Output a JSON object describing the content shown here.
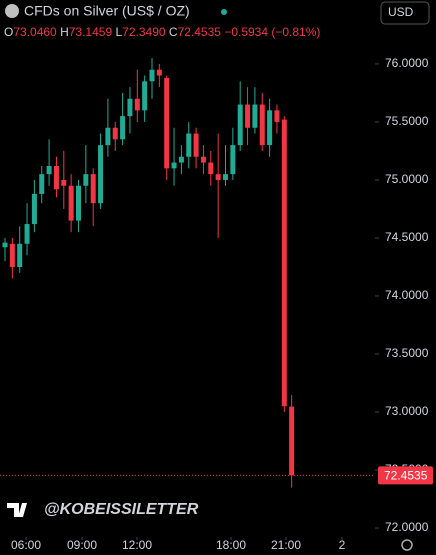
{
  "chart_data": {
    "type": "candlestick",
    "title": "CFDs on Silver (US$ / OZ)",
    "currency": "USD",
    "ohlc_legend": {
      "o_label": "O",
      "o": "73.0460",
      "h_label": "H",
      "h": "73.1459",
      "l_label": "L",
      "l": "72.3490",
      "c_label": "C",
      "c": "72.4535",
      "change": "−0.5934 (−0.81%)"
    },
    "watermark": "@KOBEISSILETTER",
    "categories": [
      null,
      null,
      null,
      null,
      null,
      null,
      null,
      null,
      null,
      null,
      null,
      null,
      null,
      null,
      null,
      null,
      null,
      null,
      null,
      null,
      null,
      null,
      null,
      null,
      null,
      null,
      null,
      null,
      null,
      null,
      null,
      null,
      null,
      null,
      null,
      null,
      null,
      null,
      null,
      null
    ],
    "open": [
      74.42,
      74.45,
      74.25,
      74.45,
      74.62,
      74.88,
      75.05,
      75.12,
      75.0,
      74.95,
      74.65,
      74.95,
      75.05,
      74.8,
      75.3,
      75.45,
      75.35,
      75.55,
      75.7,
      75.6,
      75.85,
      75.95,
      75.88,
      75.1,
      75.15,
      75.2,
      75.4,
      75.2,
      75.15,
      75.05,
      75.0,
      75.05,
      75.3,
      75.65,
      75.45,
      75.65,
      75.3,
      75.6,
      75.52,
      73.046
    ],
    "high": [
      74.5,
      74.5,
      74.6,
      74.8,
      75.0,
      75.12,
      75.35,
      75.2,
      75.25,
      75.05,
      75.0,
      75.3,
      75.1,
      75.4,
      75.7,
      75.5,
      75.75,
      75.8,
      75.95,
      75.9,
      76.05,
      76.0,
      75.9,
      75.45,
      75.3,
      75.5,
      75.45,
      75.3,
      75.25,
      75.4,
      75.3,
      75.45,
      75.85,
      75.8,
      75.8,
      75.75,
      75.7,
      75.65,
      75.55,
      73.1459
    ],
    "low": [
      74.3,
      74.15,
      74.2,
      74.35,
      74.55,
      74.8,
      74.95,
      74.85,
      74.75,
      74.55,
      74.55,
      74.8,
      74.6,
      74.75,
      75.2,
      75.25,
      75.3,
      75.4,
      75.5,
      75.5,
      75.7,
      75.8,
      75.0,
      74.95,
      75.05,
      75.1,
      75.1,
      75.05,
      74.95,
      74.5,
      74.95,
      75.0,
      75.25,
      75.3,
      75.4,
      75.25,
      75.2,
      75.4,
      73.0,
      72.349
    ],
    "close": [
      74.46,
      74.25,
      74.45,
      74.62,
      74.88,
      75.05,
      75.12,
      74.92,
      74.95,
      74.65,
      74.95,
      75.05,
      74.8,
      75.3,
      75.45,
      75.35,
      75.55,
      75.7,
      75.6,
      75.85,
      75.95,
      75.9,
      75.1,
      75.15,
      75.2,
      75.4,
      75.2,
      75.15,
      75.05,
      75.0,
      75.05,
      75.3,
      75.65,
      75.45,
      75.65,
      75.3,
      75.6,
      75.5,
      73.05,
      72.4535
    ],
    "up_color": "#22ab94",
    "down_color": "#f23645",
    "xlim": [
      -0.68,
      50.34
    ],
    "xticks": [
      {
        "value": 2.86,
        "label": "06:00"
      },
      {
        "value": 10.48,
        "label": "09:00"
      },
      {
        "value": 17.96,
        "label": "12:00"
      },
      {
        "value": 30.75,
        "label": "18:00"
      },
      {
        "value": 38.23,
        "label": "21:00"
      },
      {
        "value": 45.85,
        "label": "2"
      }
    ],
    "ylim": [
      71.94,
      76.12
    ],
    "yticks": [
      {
        "value": 72,
        "label": "72.0000"
      },
      {
        "value": 72.5,
        "label": "72.5000"
      },
      {
        "value": 73,
        "label": "73.0000"
      },
      {
        "value": 73.5,
        "label": "73.5000"
      },
      {
        "value": 74,
        "label": "74.0000"
      },
      {
        "value": 74.5,
        "label": "74.5000"
      },
      {
        "value": 75,
        "label": "75.0000"
      },
      {
        "value": 75.5,
        "label": "75.5000"
      },
      {
        "value": 76,
        "label": "76.0000"
      }
    ]
  }
}
